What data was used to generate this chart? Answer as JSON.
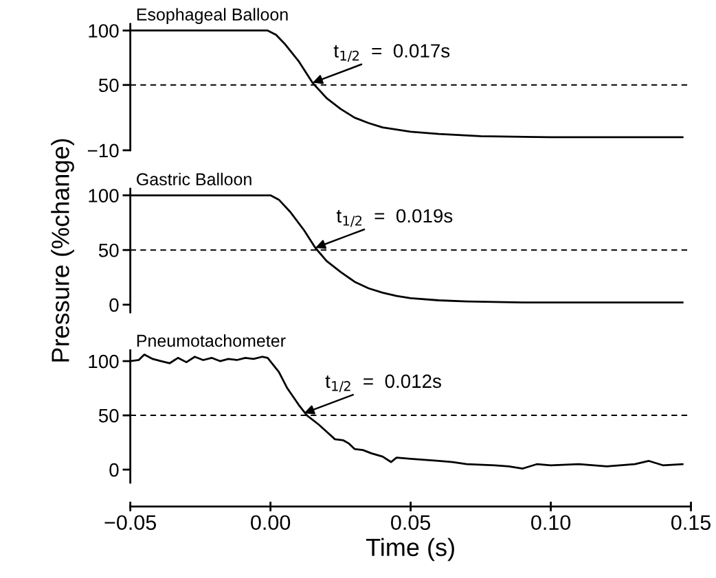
{
  "chart_data": [
    {
      "type": "line",
      "title": "Esophageal Balloon",
      "color": "#000000",
      "xlim": [
        -0.05,
        0.15
      ],
      "ylim": [
        -10,
        106
      ],
      "yticks": [
        {
          "value": -10,
          "label": "−10"
        },
        50,
        100
      ],
      "tick_labels": "y",
      "x": [
        -0.05,
        -0.03,
        -0.01,
        -0.001,
        0.002,
        0.005,
        0.01,
        0.015,
        0.02,
        0.025,
        0.03,
        0.035,
        0.04,
        0.05,
        0.06,
        0.075,
        0.1,
        0.125,
        0.147
      ],
      "values": [
        100,
        100,
        100,
        100,
        96,
        88,
        72,
        52,
        38,
        28,
        20,
        15,
        11,
        7,
        5,
        3,
        2,
        2,
        2
      ],
      "ref_lines": [
        {
          "axis": "y",
          "value": 50,
          "label": null,
          "line_style": "dashed"
        }
      ],
      "annotations": [
        {
          "text": "t$_{1/2}$  =  0.017s",
          "x": 0.015,
          "y": 52
        }
      ]
    },
    {
      "type": "line",
      "title": "Gastric Balloon",
      "ylabel": "Pressure (%change)",
      "color": "#000000",
      "xlim": [
        -0.05,
        0.15
      ],
      "ylim": [
        -7,
        106
      ],
      "yticks": [
        0,
        50,
        100
      ],
      "tick_labels": "y",
      "x": [
        -0.05,
        -0.03,
        -0.01,
        0.0,
        0.003,
        0.007,
        0.012,
        0.016,
        0.02,
        0.025,
        0.03,
        0.035,
        0.04,
        0.045,
        0.05,
        0.06,
        0.07,
        0.09,
        0.12,
        0.147
      ],
      "values": [
        100,
        100,
        100,
        100,
        96,
        85,
        68,
        52,
        40,
        30,
        21,
        15,
        11,
        8,
        6,
        4,
        3,
        2,
        2,
        2
      ],
      "ref_lines": [
        {
          "axis": "y",
          "value": 50,
          "label": null,
          "line_style": "dashed"
        }
      ],
      "annotations": [
        {
          "text": "t$_{1/2}$  =  0.019s",
          "x": 0.016,
          "y": 52
        }
      ]
    },
    {
      "type": "line",
      "title": "Pneumotachometer",
      "xlabel": "Time (s)",
      "color": "#000000",
      "xlim": [
        -0.05,
        0.15
      ],
      "xticks": [
        {
          "value": -0.05,
          "label": "−0.05"
        },
        {
          "value": 0.0,
          "label": "0.00"
        },
        {
          "value": 0.05,
          "label": "0.05"
        },
        {
          "value": 0.1,
          "label": "0.10"
        },
        {
          "value": 0.15,
          "label": "0.15"
        }
      ],
      "ylim": [
        -12,
        110
      ],
      "yticks": [
        0,
        50,
        100
      ],
      "x": [
        -0.05,
        -0.047,
        -0.045,
        -0.042,
        -0.039,
        -0.036,
        -0.033,
        -0.03,
        -0.027,
        -0.024,
        -0.021,
        -0.018,
        -0.015,
        -0.012,
        -0.009,
        -0.006,
        -0.003,
        -0.001,
        0.003,
        0.006,
        0.01,
        0.013,
        0.017,
        0.02,
        0.023,
        0.026,
        0.028,
        0.03,
        0.033,
        0.036,
        0.04,
        0.043,
        0.045,
        0.05,
        0.055,
        0.06,
        0.065,
        0.07,
        0.08,
        0.085,
        0.09,
        0.095,
        0.1,
        0.11,
        0.12,
        0.13,
        0.135,
        0.14,
        0.147
      ],
      "values": [
        100,
        101,
        106,
        102,
        100,
        98,
        103,
        99,
        104,
        101,
        103,
        100,
        102,
        101,
        103,
        102,
        104,
        103,
        90,
        75,
        60,
        50,
        42,
        35,
        28,
        27,
        24,
        19,
        18,
        15,
        12,
        7,
        11,
        10,
        9,
        8,
        7,
        5,
        4,
        3,
        1,
        5,
        4,
        5,
        3,
        5,
        8,
        4,
        5
      ],
      "ref_lines": [
        {
          "axis": "y",
          "value": 50,
          "label": null,
          "line_style": "dashed"
        }
      ],
      "annotations": [
        {
          "text": "t$_{1/2}$  =  0.012s",
          "x": 0.012,
          "y": 52
        }
      ]
    }
  ]
}
